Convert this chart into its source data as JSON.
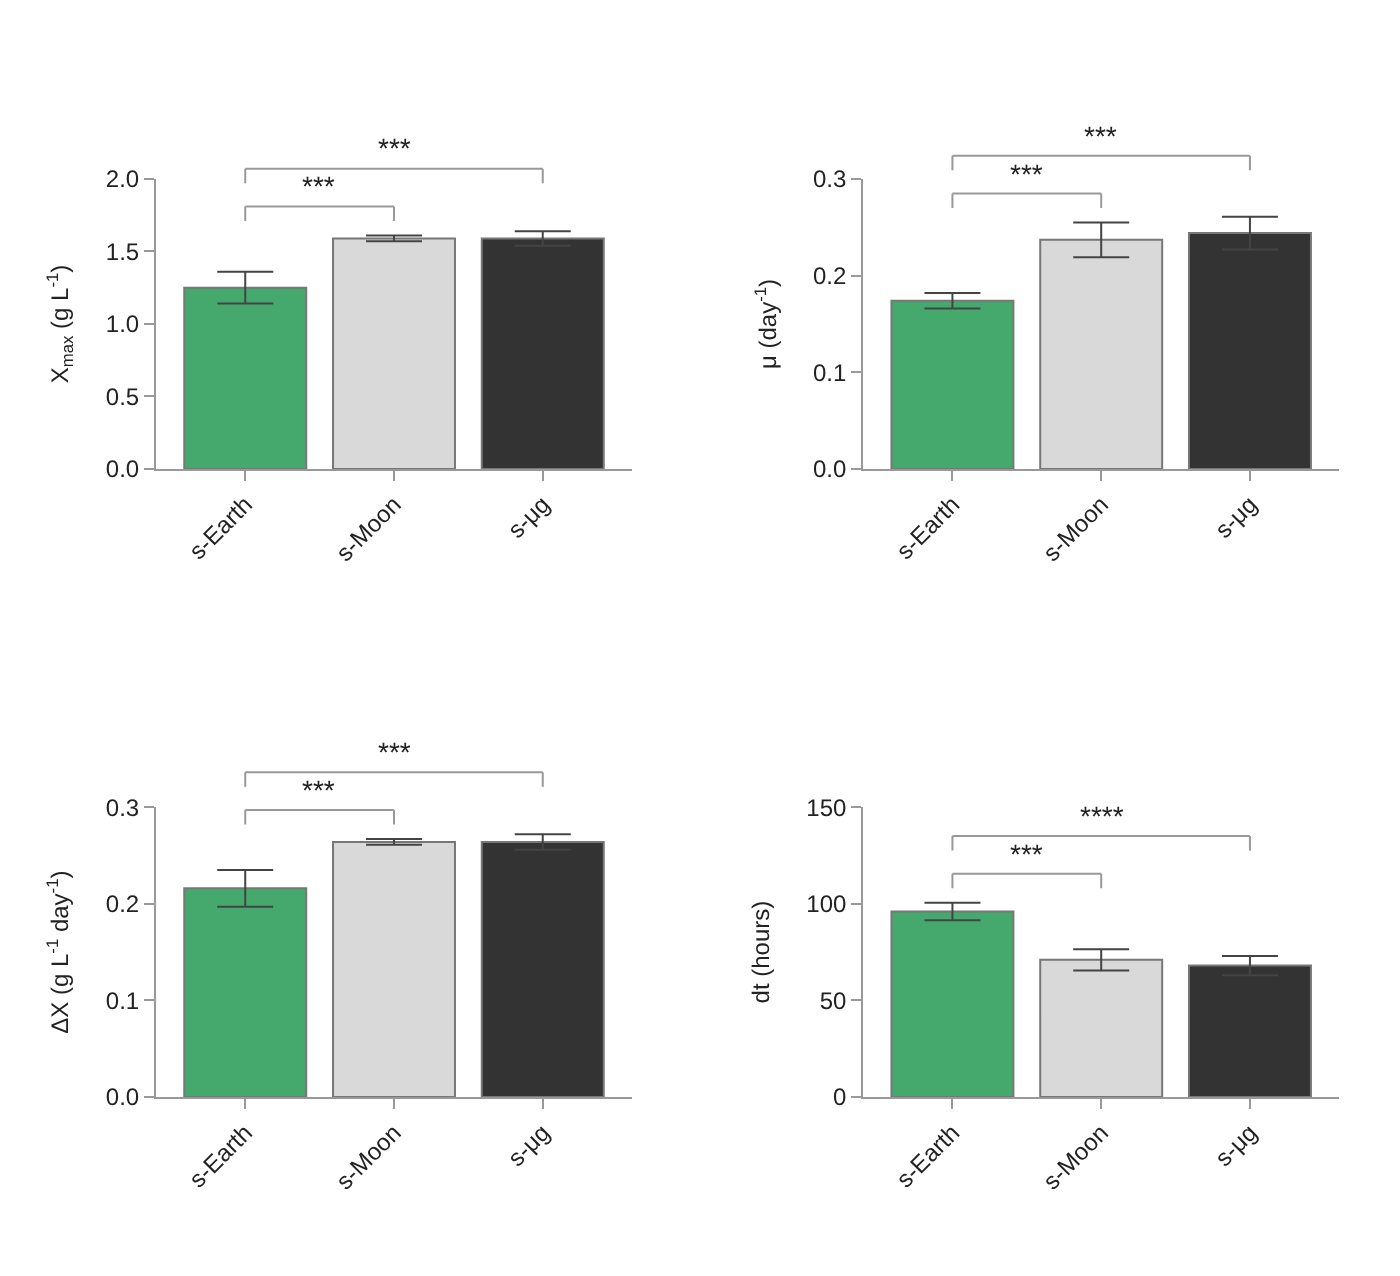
{
  "chart_data": [
    {
      "type": "bar",
      "categories": [
        "s-Earth",
        "s-Moon",
        "s-μg"
      ],
      "values": [
        1.25,
        1.59,
        1.59
      ],
      "colors": [
        "#45a96e",
        "#d9d9d9",
        "#333333"
      ],
      "errors": [
        0.11,
        0.02,
        0.05
      ],
      "ylabel": "X$_{max}$ (g L$^{-1}$)",
      "ylim": [
        0,
        2
      ],
      "yticks": [
        {
          "value": 0,
          "label": "0.0"
        },
        {
          "value": 0.5,
          "label": "0.5"
        },
        {
          "value": 1,
          "label": "1.0"
        },
        {
          "value": 1.5,
          "label": "1.5"
        },
        {
          "value": 2,
          "label": "2.0"
        }
      ],
      "annotations": [
        "***",
        "***"
      ]
    },
    {
      "type": "bar",
      "categories": [
        "s-Earth",
        "s-Moon",
        "s-μg"
      ],
      "values": [
        0.174,
        0.237,
        0.244
      ],
      "colors": [
        "#45a96e",
        "#d9d9d9",
        "#333333"
      ],
      "errors": [
        0.008,
        0.018,
        0.017
      ],
      "ylabel": "μ (day$^{-1}$)",
      "ylim": [
        0,
        0.3
      ],
      "yticks": [
        {
          "value": 0,
          "label": "0.0"
        },
        0.1,
        0.2,
        0.3
      ],
      "annotations": [
        "***",
        "***"
      ]
    },
    {
      "type": "bar",
      "categories": [
        "s-Earth",
        "s-Moon",
        "s-μg"
      ],
      "values": [
        0.216,
        0.264,
        0.264
      ],
      "colors": [
        "#45a96e",
        "#d9d9d9",
        "#333333"
      ],
      "errors": [
        0.019,
        0.003,
        0.008
      ],
      "ylabel": "ΔX (g L$^{-1}$ day$^{-1}$)",
      "ylim": [
        0,
        0.3
      ],
      "yticks": [
        {
          "value": 0,
          "label": "0.0"
        },
        0.1,
        0.2,
        0.3
      ],
      "annotations": [
        "***",
        "***"
      ]
    },
    {
      "type": "bar",
      "categories": [
        "s-Earth",
        "s-Moon",
        "s-μg"
      ],
      "values": [
        96,
        71,
        68
      ],
      "colors": [
        "#45a96e",
        "#d9d9d9",
        "#333333"
      ],
      "errors": [
        4.5,
        5.5,
        5
      ],
      "ylabel": "dt (hours)",
      "ylim": [
        0,
        150
      ],
      "yticks": [
        0,
        50,
        100,
        150
      ],
      "annotations": [
        "***",
        "****"
      ]
    }
  ]
}
